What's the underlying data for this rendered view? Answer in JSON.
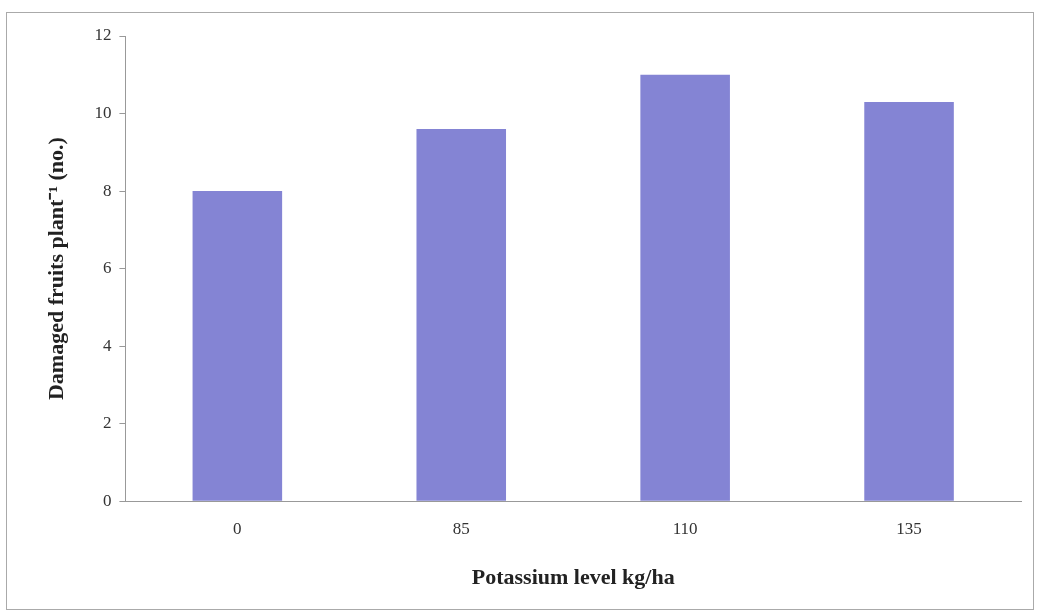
{
  "chart_data": {
    "type": "bar",
    "xlabel": "Potassium level kg/ha",
    "ylabel": "Damaged fruits plant⁻¹ (no.)",
    "categories": [
      "0",
      "85",
      "110",
      "135"
    ],
    "values": [
      8,
      9.6,
      11,
      10.3
    ],
    "color": "#8484d4",
    "ylim": [
      0,
      12
    ],
    "yticks": [
      0,
      2,
      4,
      6,
      8,
      10,
      12
    ],
    "grid": false,
    "legend": false
  }
}
